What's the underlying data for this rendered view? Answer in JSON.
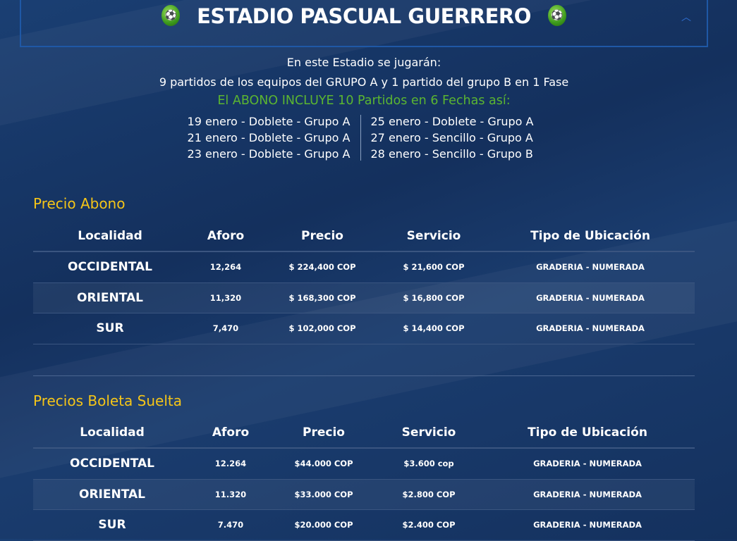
{
  "header": {
    "title": "ESTADIO PASCUAL GUERRERO",
    "icon": "soccer-player-icon",
    "collapse_icon": "chevron-up-icon"
  },
  "intro": {
    "line1": "En este Estadio se jugarán:",
    "line2": "9 partidos de los equipos del GRUPO A y 1 partido del grupo B en 1 Fase",
    "line3": "El ABONO INCLUYE 10 Partidos en 6 Fechas así:"
  },
  "schedule": {
    "left": [
      "19 enero -  Doblete - Grupo A",
      "21 enero -  Doblete - Grupo A",
      "23 enero - Doblete - Grupo A"
    ],
    "right": [
      "25 enero - Doblete - Grupo A",
      "27 enero - Sencillo - Grupo A",
      "28 enero - Sencillo - Grupo B"
    ]
  },
  "colors": {
    "accent_green": "#5bb531",
    "section_yellow": "#f5c518",
    "background": "#15325f"
  },
  "abono": {
    "title": "Precio Abono",
    "headers": [
      "Localidad",
      "Aforo",
      "Precio",
      "Servicio",
      "Tipo de Ubicación"
    ],
    "rows": [
      [
        "OCCIDENTAL",
        "12,264",
        "$ 224,400 COP",
        "$ 21,600 COP",
        "GRADERIA - NUMERADA"
      ],
      [
        "ORIENTAL",
        "11,320",
        "$ 168,300 COP",
        "$ 16,800 COP",
        "GRADERIA - NUMERADA"
      ],
      [
        "SUR",
        "7,470",
        "$ 102,000 COP",
        "$ 14,400 COP",
        "GRADERIA - NUMERADA"
      ]
    ]
  },
  "suelta": {
    "title": "Precios Boleta Suelta",
    "headers": [
      "Localidad",
      "Aforo",
      "Precio",
      "Servicio",
      "Tipo de Ubicación"
    ],
    "rows": [
      [
        "OCCIDENTAL",
        "12.264",
        "$44.000 COP",
        "$3.600 cop",
        "GRADERIA - NUMERADA"
      ],
      [
        "ORIENTAL",
        "11.320",
        "$33.000 COP",
        "$2.800 COP",
        "GRADERIA - NUMERADA"
      ],
      [
        "SUR",
        "7.470",
        "$20.000 COP",
        "$2.400 COP",
        "GRADERIA - NUMERADA"
      ]
    ]
  }
}
